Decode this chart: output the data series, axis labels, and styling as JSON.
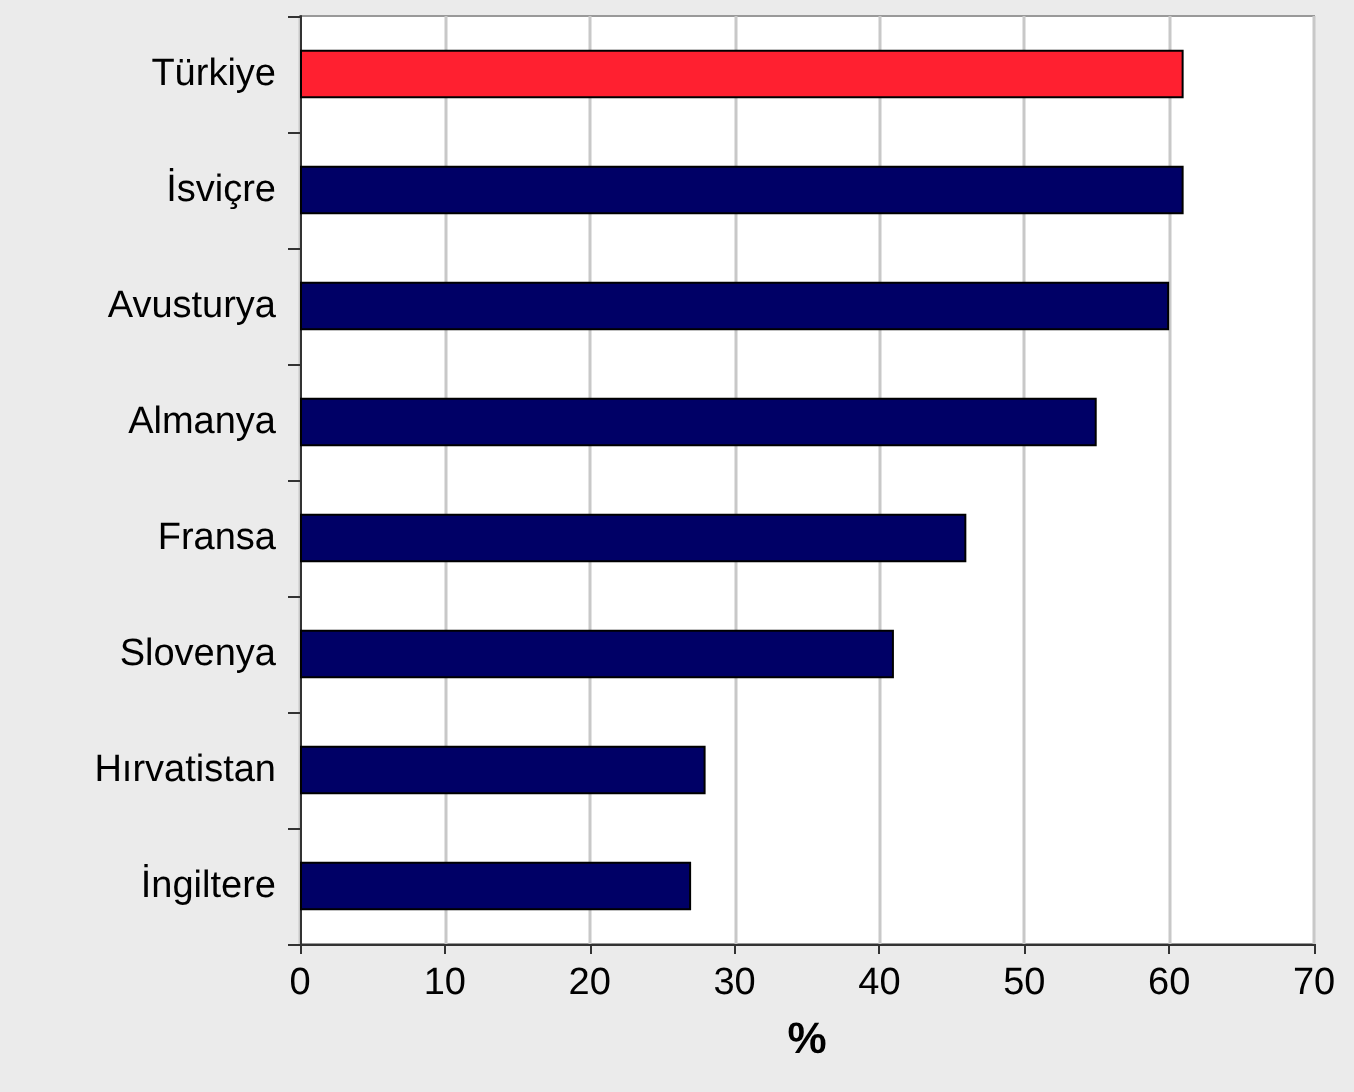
{
  "chart_data": {
    "type": "bar",
    "orientation": "horizontal",
    "xlabel": "%",
    "categories": [
      "Türkiye",
      "İsviçre",
      "Avusturya",
      "Almanya",
      "Fransa",
      "Slovenya",
      "Hırvatistan",
      "İngiltere"
    ],
    "values": [
      61,
      61,
      60,
      55,
      46,
      41,
      28,
      27
    ],
    "colors": [
      "#ff2030",
      "#000066",
      "#000066",
      "#000066",
      "#000066",
      "#000066",
      "#000066",
      "#000066"
    ],
    "xlim": [
      0,
      70
    ],
    "xticks": [
      0,
      10,
      20,
      30,
      40,
      50,
      60,
      70
    ],
    "grid": "x"
  }
}
